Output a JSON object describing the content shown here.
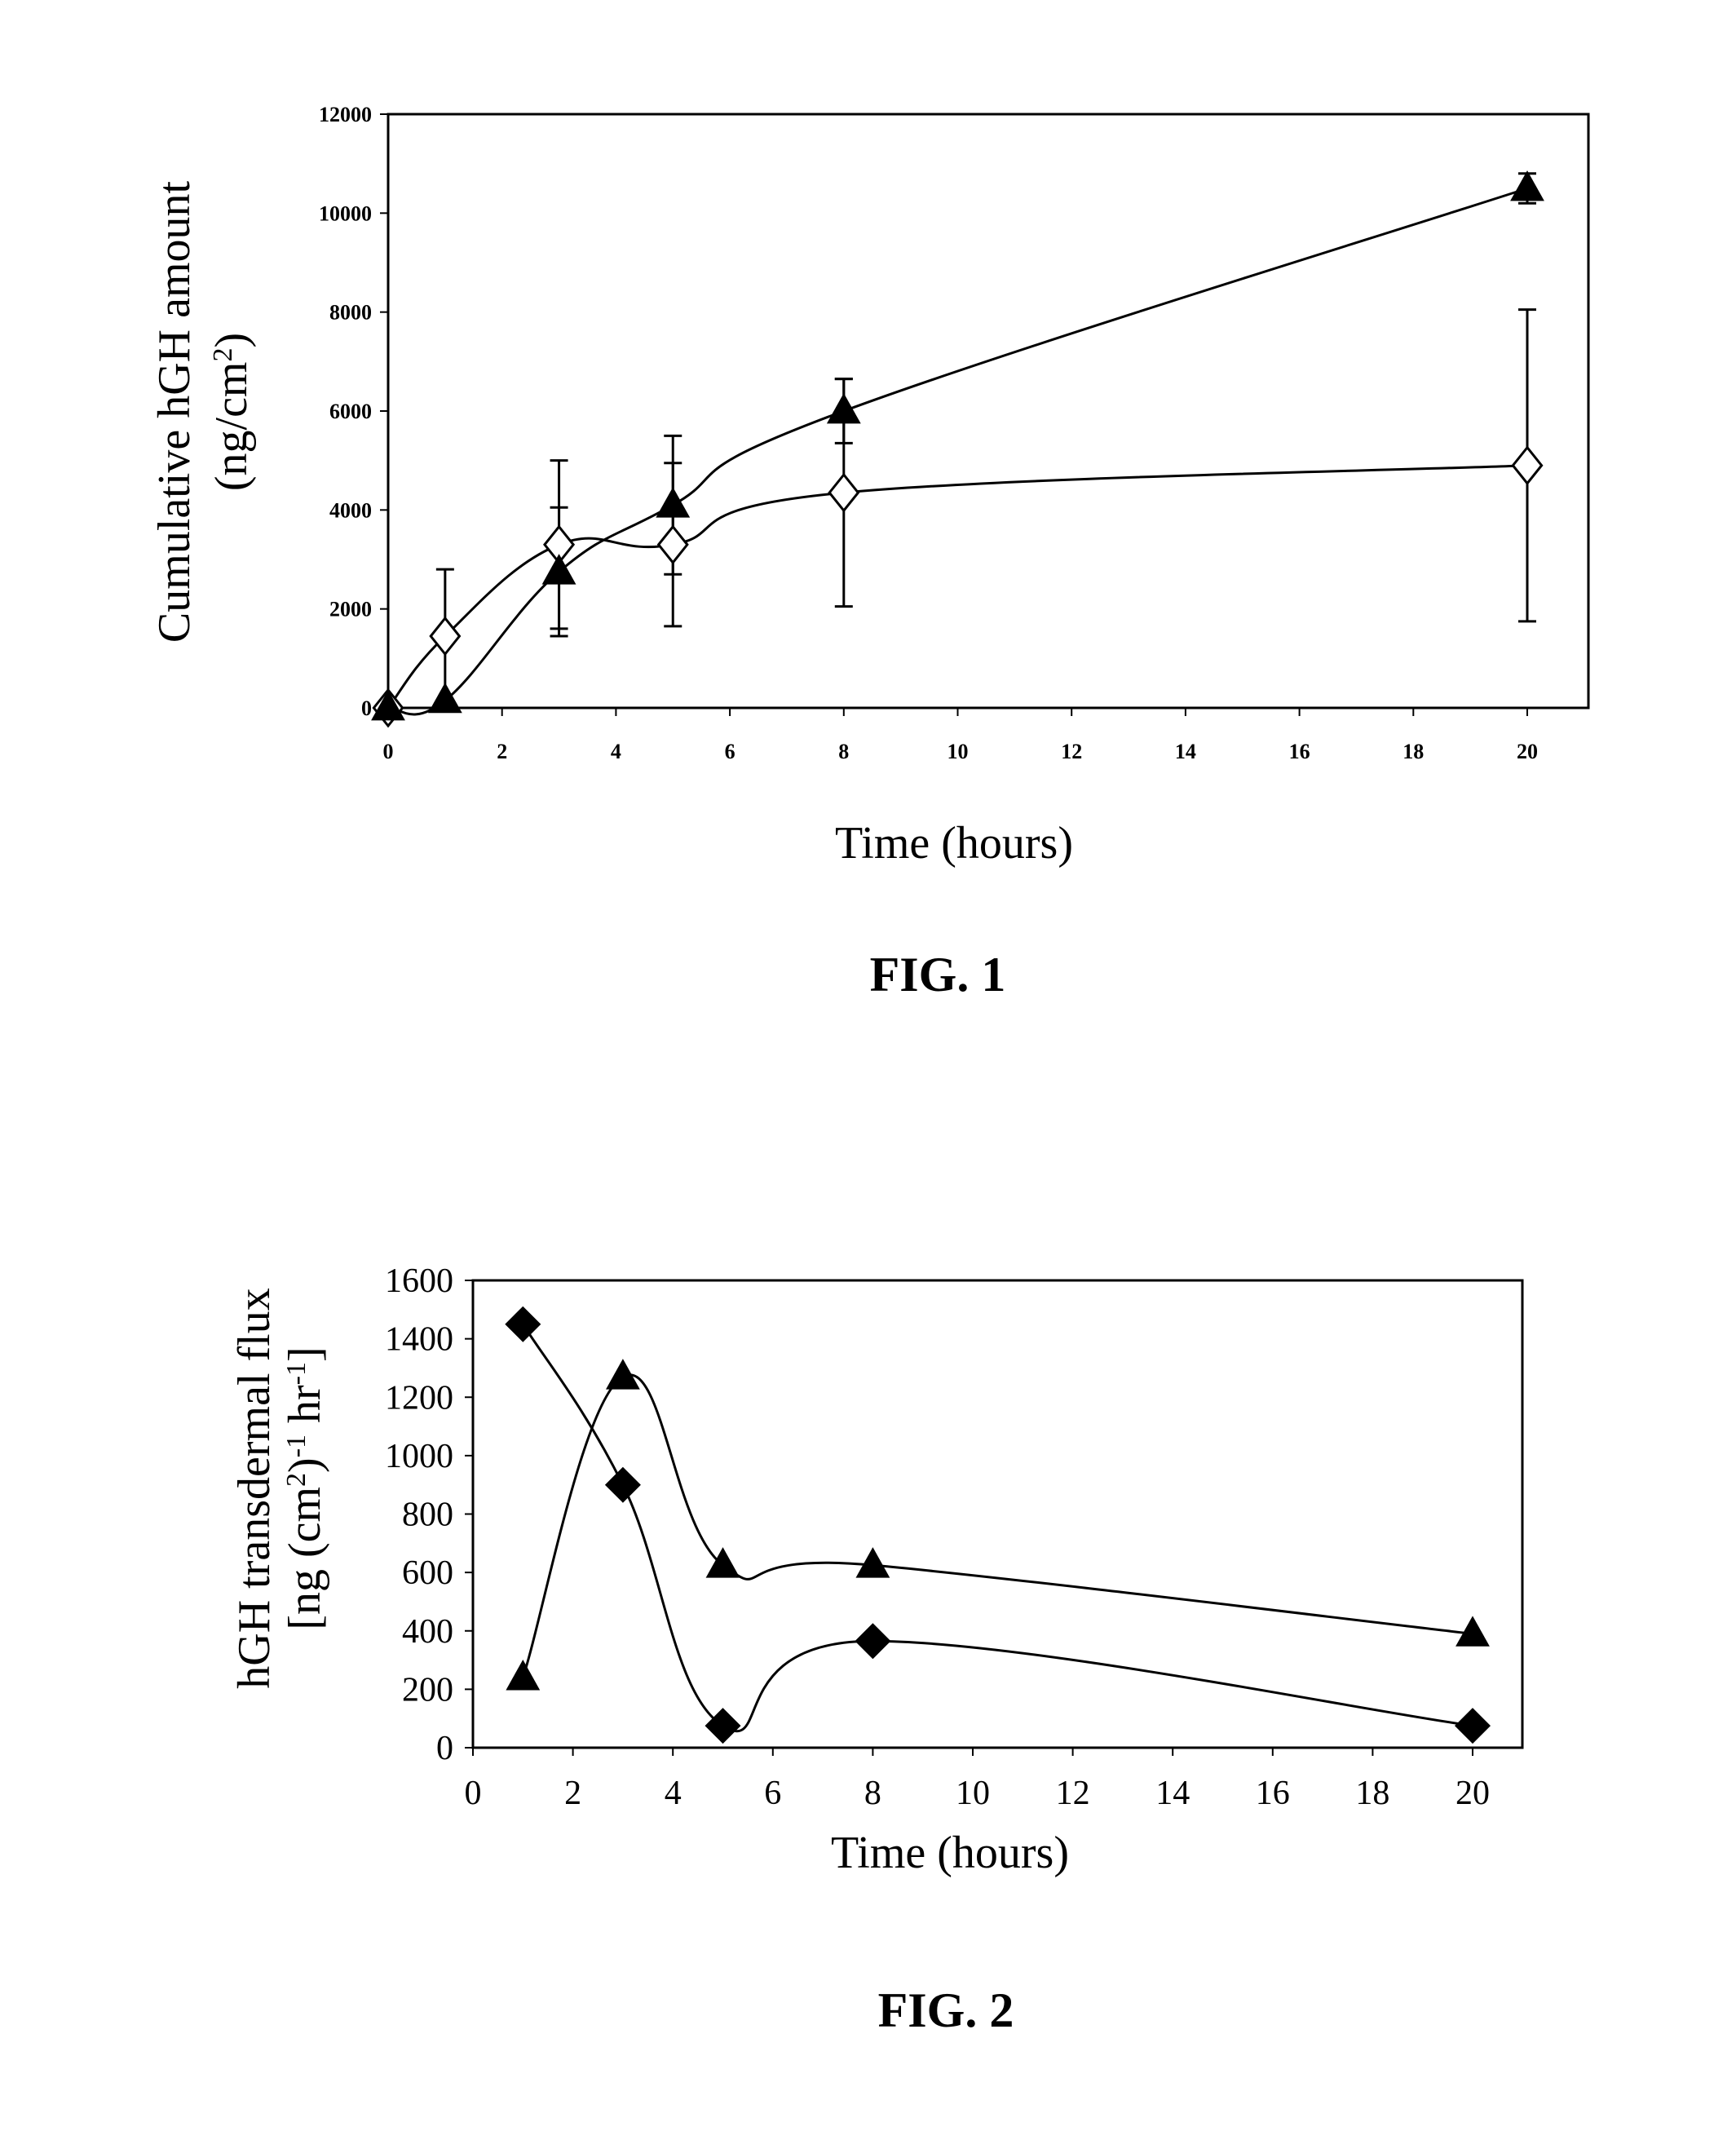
{
  "chart_data": [
    {
      "type": "line",
      "figure_label": "FIG. 1",
      "xlabel": "Time (hours)",
      "ylabel_line1": "Cumulative hGH amount",
      "ylabel_line2_prefix": "(ng/cm",
      "ylabel_line2_sup": "2",
      "ylabel_line2_suffix": ")",
      "xlim": [
        0,
        21
      ],
      "ylim": [
        0,
        12000
      ],
      "xticks": [
        "0",
        "2",
        "4",
        "6",
        "8",
        "10",
        "12",
        "14",
        "16",
        "18",
        "20"
      ],
      "yticks": [
        "0",
        "2000",
        "4000",
        "6000",
        "8000",
        "10000",
        "12000"
      ],
      "grid": false,
      "series": [
        {
          "marker": "open-diamond",
          "x": [
            0,
            1,
            3,
            5,
            8,
            20
          ],
          "y": [
            0,
            1450,
            3300,
            3300,
            4350,
            4900
          ],
          "err": [
            0,
            1350,
            1700,
            1650,
            2300,
            3150
          ]
        },
        {
          "marker": "filled-triangle",
          "x": [
            0,
            1,
            3,
            5,
            8,
            20
          ],
          "y": [
            0,
            150,
            2750,
            4100,
            6000,
            10500
          ],
          "err": [
            0,
            0,
            1300,
            1400,
            650,
            300
          ]
        }
      ]
    },
    {
      "type": "line",
      "figure_label": "FIG. 2",
      "xlabel": "Time (hours)",
      "ylabel_line1": "hGH transdermal flux",
      "ylabel_line2_parts": [
        "[ng (cm",
        "2",
        ")",
        "-1",
        " hr",
        "-1",
        "]"
      ],
      "xlim": [
        0,
        21
      ],
      "ylim": [
        0,
        1600
      ],
      "xticks": [
        "0",
        "2",
        "4",
        "6",
        "8",
        "10",
        "12",
        "14",
        "16",
        "18",
        "20"
      ],
      "yticks": [
        "0",
        "200",
        "400",
        "600",
        "800",
        "1000",
        "1200",
        "1400",
        "1600"
      ],
      "grid": false,
      "series": [
        {
          "marker": "filled-diamond",
          "x": [
            1,
            3,
            5,
            8,
            20
          ],
          "y": [
            1450,
            900,
            75,
            365,
            75
          ]
        },
        {
          "marker": "filled-triangle",
          "x": [
            1,
            3,
            5,
            8,
            20
          ],
          "y": [
            240,
            1270,
            625,
            625,
            390
          ]
        }
      ]
    }
  ]
}
